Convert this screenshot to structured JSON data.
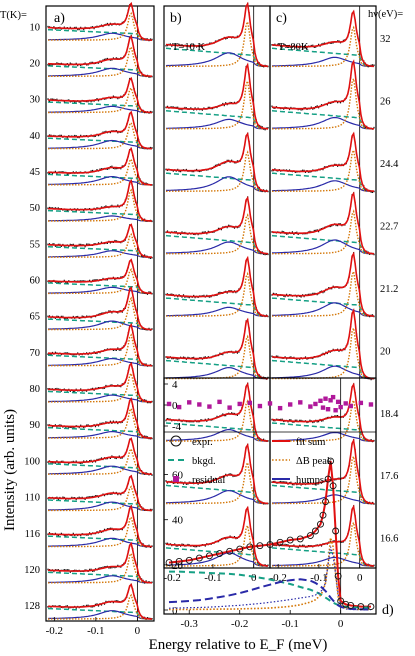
{
  "chart_data": [
    {
      "panel": "a)",
      "type": "line",
      "xlabel": "Energy relative to E_F (meV)",
      "ylabel": "Intensity (arb. units)",
      "xlim": [
        -0.22,
        0.04
      ],
      "x_ticks": [
        "-0.2",
        "-0.1",
        "0"
      ],
      "series_header": "T(K)=",
      "series_labels": [
        "10",
        "20",
        "30",
        "40",
        "45",
        "50",
        "55",
        "60",
        "65",
        "70",
        "80",
        "90",
        "100",
        "110",
        "116",
        "120",
        "128"
      ]
    },
    {
      "panel": "b)",
      "type": "line",
      "annotation": "T=10 K",
      "xlim": [
        -0.22,
        0.04
      ],
      "x_ticks": [
        "-0.2",
        "-0.1",
        "0"
      ]
    },
    {
      "panel": "c)",
      "type": "line",
      "annotation": "T=80K",
      "xlim": [
        -0.22,
        0.04
      ],
      "x_ticks": [
        "-0.2",
        "-0.1",
        "0"
      ],
      "series_header": "hν(eV)=",
      "series_labels": [
        "32",
        "26",
        "24.4",
        "22.7",
        "21.2",
        "20",
        "18.4",
        "17.6",
        "16.6"
      ]
    },
    {
      "panel": "d)",
      "type": "line",
      "xlim": [
        -0.35,
        0.07
      ],
      "ylim": [
        0,
        70
      ],
      "x_ticks": [
        "-0.3",
        "-0.2",
        "-0.1",
        "0"
      ],
      "y_ticks": [
        "0",
        "20",
        "40",
        "60"
      ],
      "residual_ylim": [
        -4,
        4
      ],
      "residual_ticks": [
        "-4",
        "0",
        "4"
      ],
      "legend": [
        "expr.",
        "fit sum",
        "bkgd.",
        "ΔB peak",
        "residual",
        "humps"
      ],
      "x": [
        -0.34,
        -0.32,
        -0.3,
        -0.28,
        -0.26,
        -0.24,
        -0.22,
        -0.2,
        -0.18,
        -0.16,
        -0.14,
        -0.12,
        -0.1,
        -0.08,
        -0.06,
        -0.05,
        -0.04,
        -0.035,
        -0.03,
        -0.025,
        -0.02,
        -0.015,
        -0.01,
        -0.005,
        0.0,
        0.01,
        0.02,
        0.04,
        0.06
      ],
      "series": [
        {
          "type": "scatter",
          "values": [
            21,
            21.5,
            22,
            23,
            24,
            25,
            26,
            27,
            28,
            28.5,
            29,
            30,
            31,
            31.5,
            33,
            35,
            38,
            42,
            48,
            58,
            66,
            55,
            35,
            15,
            4,
            2.5,
            2,
            1.5,
            1.5
          ]
        },
        {
          "values": [
            21,
            21.5,
            22,
            23,
            24,
            25,
            26,
            27,
            28,
            28.5,
            29,
            30,
            31,
            31.5,
            33,
            35,
            38,
            42,
            48,
            58,
            66,
            55,
            35,
            15,
            4,
            2.5,
            2,
            1.5,
            1.5
          ]
        },
        {
          "values": [
            17,
            17,
            16.8,
            16.6,
            16.4,
            16.2,
            16,
            15.6,
            15,
            14.3,
            13.5,
            12.5,
            11.5,
            10.2,
            9,
            8,
            7,
            6.3,
            5.5,
            4.8,
            4,
            3.3,
            2.7,
            2.2,
            1.8,
            1.4,
            1.2,
            1.1,
            1.1
          ]
        },
        {
          "values": [
            0.2,
            0.2,
            0.2,
            0.3,
            0.3,
            0.4,
            0.4,
            0.5,
            0.6,
            0.7,
            0.9,
            1.2,
            1.6,
            2.3,
            3.5,
            4.5,
            6.5,
            8.5,
            12,
            20,
            32,
            28,
            16,
            6,
            2,
            0.8,
            0.4,
            0.2,
            0.2
          ]
        },
        {
          "values": [
            3.5,
            3.7,
            4,
            4.4,
            5,
            5.7,
            6.5,
            7.5,
            8.7,
            10,
            11.2,
            12.4,
            13.2,
            13.6,
            13,
            12,
            10.5,
            9.5,
            8.4,
            7,
            5.5,
            4.2,
            3.1,
            2.1,
            1.4,
            0.8,
            0.5,
            0.3,
            0.2
          ]
        },
        {
          "values": [
            0.8,
            0.9,
            1,
            1.1,
            1.3,
            1.5,
            1.8,
            2.1,
            2.5,
            2.9,
            3.4,
            4,
            4.6,
            5.3,
            6,
            6.6,
            8,
            9.5,
            12,
            20,
            28,
            24,
            16,
            7,
            2,
            0.5,
            0.2,
            0.1,
            0.1
          ]
        }
      ],
      "residuals": [
        0.2,
        -0.4,
        0.5,
        0.1,
        -0.3,
        0.6,
        -0.5,
        0.2,
        0.4,
        -0.2,
        0.3,
        -0.6,
        0.1,
        0.5,
        -0.3,
        0.2,
        0.8,
        -0.5,
        1.2,
        -0.8,
        0.9,
        1.5,
        -1.0,
        0.6,
        -0.4,
        0.3,
        -0.2,
        0.4,
        0.1
      ]
    }
  ]
}
